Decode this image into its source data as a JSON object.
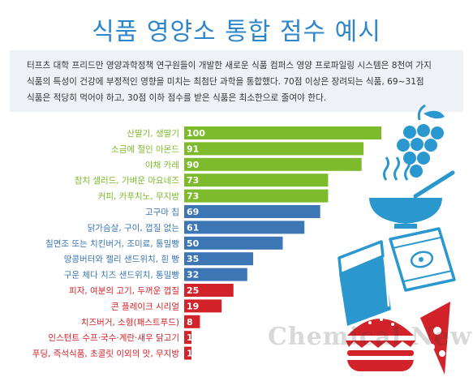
{
  "header": {
    "title": "식품 영양소 통합 점수 예시",
    "description": [
      "터프츠 대학 프리드만 영양과학정책 연구원들이 개발한 새로운 식품 컴퍼스 영양 프로파일링 시스템은 8천여 가지",
      "식품의 특성이 건강에 부정적인 영향을 미치는 최첨단 과학을 통합했다. 70점 이상은 장려되는 식품, 69~31점",
      "식품은 적당히 먹어야 하고, 30점 이하 점수를 받은 식품은 최소한으로 줄여야 한다."
    ]
  },
  "colors": {
    "title": "#2e86c8",
    "green": "#7dba2c",
    "blue": "#3c76b5",
    "red": "#d2232a",
    "icon": "#2a98cf"
  },
  "chart_data": {
    "type": "bar",
    "orientation": "horizontal",
    "categories": [
      "산딸기, 생딸기",
      "소금에 절인 아몬드",
      "야채 카레",
      "참치 샐러드, 가벼운 마요네즈",
      "커피, 카푸치노, 무지방",
      "고구마 칩",
      "닭가슴살, 구이, 껍질 없는",
      "칠면조 또는 치킨버거, 조미료, 통밀빵",
      "땅콩버터와 젤리 샌드위치, 흰 빵",
      "구운 체다 치즈 샌드위치, 통밀빵",
      "피자, 여분의 고기, 두꺼운 껍질",
      "콘 플레이크 시리얼",
      "치즈버거, 소형(패스트푸드)",
      "인스턴트 수프·국수·계란·새우 닭고기",
      "푸딩, 즉석식품, 초콜릿 이외의 맛, 무지방"
    ],
    "values": [
      100,
      91,
      90,
      73,
      73,
      69,
      61,
      50,
      35,
      32,
      25,
      19,
      8,
      1,
      1
    ],
    "value_labels": [
      "100",
      "91",
      "90",
      "73",
      "73",
      "69",
      "61",
      "50",
      "35",
      "32",
      "25",
      "19",
      "8",
      "1",
      "1"
    ],
    "xlim": [
      0,
      100
    ],
    "grid": false,
    "legend": "none",
    "color_bands": [
      {
        "range": [
          70,
          100
        ],
        "color": "#7dba2c"
      },
      {
        "range": [
          31,
          69
        ],
        "color": "#3c76b5"
      },
      {
        "range": [
          0,
          30
        ],
        "color": "#d2232a"
      }
    ]
  },
  "icons": [
    "grapes-icon",
    "soup-bowl-icon",
    "chips-bag-icon",
    "sandwich-icon",
    "burger-icon",
    "pizza-slice-icon"
  ],
  "watermark": "Chemical News"
}
